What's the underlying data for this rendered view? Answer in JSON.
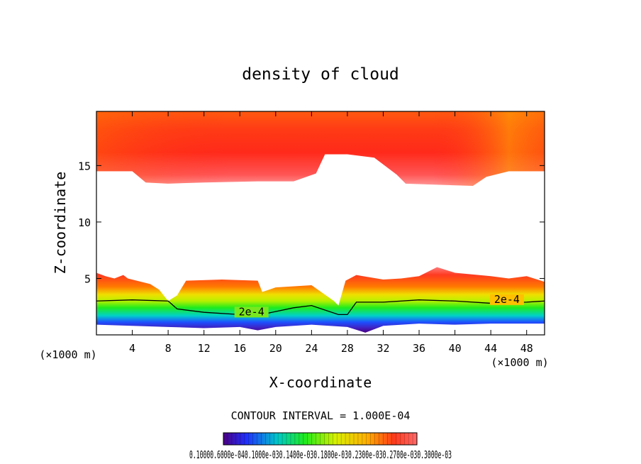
{
  "chart_data": {
    "type": "heatmap",
    "title": "density of cloud",
    "xlabel": "X-coordinate",
    "ylabel": "Z-coordinate",
    "x_unit": "(×1000 m)",
    "z_unit": "(×1000 m)",
    "xlim": [
      0,
      50
    ],
    "ylim": [
      0,
      19.8
    ],
    "x_ticks": [
      4,
      8,
      12,
      16,
      20,
      24,
      28,
      32,
      36,
      40,
      44,
      48
    ],
    "y_ticks": [
      5,
      10,
      15
    ],
    "contour_interval": "CONTOUR INTERVAL = 1.000E-04",
    "contour_labels": [
      {
        "text": "2e-4",
        "x": 17.3,
        "z": 1.8
      },
      {
        "text": "2e-4",
        "x": 45.8,
        "z": 2.9
      }
    ],
    "upper_layer": {
      "bottom": [
        [
          0,
          14.5
        ],
        [
          4,
          14.5
        ],
        [
          5.5,
          13.5
        ],
        [
          8,
          13.4
        ],
        [
          12,
          13.5
        ],
        [
          18,
          13.6
        ],
        [
          22,
          13.6
        ],
        [
          24.5,
          14.3
        ],
        [
          25.5,
          16.0
        ],
        [
          28,
          16.0
        ],
        [
          31,
          15.7
        ],
        [
          33.5,
          14.2
        ],
        [
          34.5,
          13.4
        ],
        [
          38,
          13.3
        ],
        [
          42,
          13.2
        ],
        [
          43.5,
          14.0
        ],
        [
          46,
          14.5
        ],
        [
          50,
          14.5
        ]
      ],
      "top": 19.8
    },
    "lower_layer": {
      "top": [
        [
          0,
          5.5
        ],
        [
          1,
          5.2
        ],
        [
          2,
          5.0
        ],
        [
          3,
          5.3
        ],
        [
          3.5,
          5.0
        ],
        [
          6,
          4.5
        ],
        [
          7,
          4.0
        ],
        [
          8,
          3.0
        ],
        [
          9,
          3.5
        ],
        [
          10,
          4.8
        ],
        [
          14,
          4.9
        ],
        [
          18,
          4.8
        ],
        [
          18.5,
          3.8
        ],
        [
          20,
          4.2
        ],
        [
          24,
          4.4
        ],
        [
          26.5,
          3.0
        ],
        [
          27,
          2.6
        ],
        [
          27.8,
          4.8
        ],
        [
          29,
          5.3
        ],
        [
          32,
          4.9
        ],
        [
          34,
          5.0
        ],
        [
          36,
          5.2
        ],
        [
          38,
          6.0
        ],
        [
          40,
          5.5
        ],
        [
          44,
          5.2
        ],
        [
          46,
          5.0
        ],
        [
          48,
          5.2
        ],
        [
          50,
          4.7
        ]
      ],
      "bottom": [
        [
          0,
          0.9
        ],
        [
          4,
          0.8
        ],
        [
          8,
          0.7
        ],
        [
          12,
          0.6
        ],
        [
          16,
          0.7
        ],
        [
          18,
          0.4
        ],
        [
          20,
          0.7
        ],
        [
          24,
          0.9
        ],
        [
          28,
          0.7
        ],
        [
          30,
          0.2
        ],
        [
          32,
          0.8
        ],
        [
          36,
          1.0
        ],
        [
          40,
          0.9
        ],
        [
          44,
          1.0
        ],
        [
          50,
          1.0
        ]
      ]
    },
    "colorbar": {
      "labels": [
        "0.1000",
        "0.6000e-04",
        "0.1000e-03",
        "0.1400e-03",
        "0.1800e-03",
        "0.2300e-03",
        "0.2700e-03",
        "0.3000e-03"
      ],
      "label_text": "0.10000.6000e-040.1000e-030.1400e-030.1800e-030.2300e-030.2700e-030.3000e-03"
    },
    "colors": {
      "low": "#4b0082",
      "blue": "#1e50ff",
      "cyan": "#00d2d2",
      "green": "#1eeb1e",
      "yellow": "#f0f000",
      "orange": "#ff9600",
      "red": "#ff2a1a",
      "pink": "#ff8c8c"
    }
  }
}
